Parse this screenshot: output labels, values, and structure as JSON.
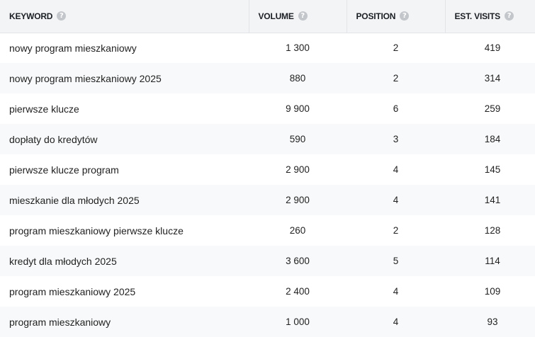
{
  "table": {
    "headers": {
      "keyword": "KEYWORD",
      "volume": "VOLUME",
      "position": "POSITION",
      "visits": "EST. VISITS",
      "help_glyph": "?"
    },
    "rows": [
      {
        "keyword": "nowy program mieszkaniowy",
        "volume": "1 300",
        "position": "2",
        "visits": "419"
      },
      {
        "keyword": "nowy program mieszkaniowy 2025",
        "volume": "880",
        "position": "2",
        "visits": "314"
      },
      {
        "keyword": "pierwsze klucze",
        "volume": "9 900",
        "position": "6",
        "visits": "259"
      },
      {
        "keyword": "dopłaty do kredytów",
        "volume": "590",
        "position": "3",
        "visits": "184"
      },
      {
        "keyword": "pierwsze klucze program",
        "volume": "2 900",
        "position": "4",
        "visits": "145"
      },
      {
        "keyword": "mieszkanie dla młodych 2025",
        "volume": "2 900",
        "position": "4",
        "visits": "141"
      },
      {
        "keyword": "program mieszkaniowy pierwsze klucze",
        "volume": "260",
        "position": "2",
        "visits": "128"
      },
      {
        "keyword": "kredyt dla młodych 2025",
        "volume": "3 600",
        "position": "5",
        "visits": "114"
      },
      {
        "keyword": "program mieszkaniowy 2025",
        "volume": "2 400",
        "position": "4",
        "visits": "109"
      },
      {
        "keyword": "program mieszkaniowy",
        "volume": "1 000",
        "position": "4",
        "visits": "93"
      }
    ]
  },
  "icons": {
    "help": "help-icon"
  },
  "colors": {
    "header_bg": "#f3f4f6",
    "row_alt_bg": "#f8f9fa",
    "help_icon": "#c3c6cb"
  }
}
